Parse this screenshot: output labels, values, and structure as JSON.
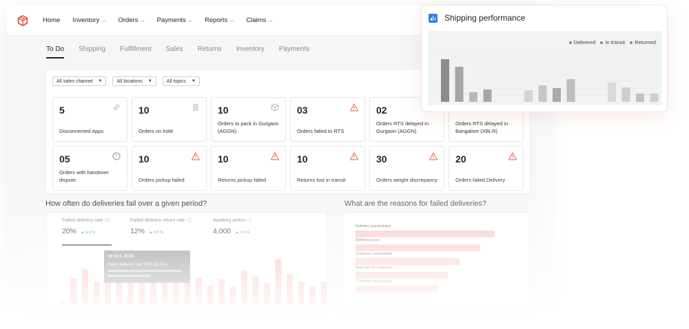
{
  "nav": {
    "items": [
      {
        "label": "Home",
        "has_dropdown": false
      },
      {
        "label": "Inventory",
        "has_dropdown": true
      },
      {
        "label": "Orders",
        "has_dropdown": true
      },
      {
        "label": "Payments",
        "has_dropdown": true
      },
      {
        "label": "Reports",
        "has_dropdown": true
      },
      {
        "label": "Claims",
        "has_dropdown": true
      }
    ]
  },
  "subtabs": [
    "To Do",
    "Shipping",
    "Fulfillment",
    "Sales",
    "Returns",
    "Inventory",
    "Payments"
  ],
  "active_subtab": "To Do",
  "filters": [
    "All sales channel",
    "All locations",
    "All topics"
  ],
  "cards": [
    {
      "value": "5",
      "label": "Disconnected Apps",
      "icon": "link-icon"
    },
    {
      "value": "10",
      "label": "Orders on hold",
      "icon": "pause-icon"
    },
    {
      "value": "10",
      "label": "Orders to pack in Gurgaon (AGGN)",
      "icon": "box-icon"
    },
    {
      "value": "03",
      "label": "Orders failed to RTS",
      "icon": "warning-icon"
    },
    {
      "value": "02",
      "label": "Orders RTS delayed in Gurgaon (AGGN)",
      "icon": ""
    },
    {
      "value": "",
      "label": "Orders RTS delayed in Bangalore (XBLR)",
      "icon": ""
    },
    {
      "value": "05",
      "label": "Orders with handover dispute",
      "icon": "info-icon"
    },
    {
      "value": "10",
      "label": "Orders pickup failed",
      "icon": "warning-icon"
    },
    {
      "value": "10",
      "label": "Returns pickup failed",
      "icon": "warning-icon"
    },
    {
      "value": "10",
      "label": "Returns lost in transit",
      "icon": "warning-icon"
    },
    {
      "value": "30",
      "label": "Orders weight discrepancy",
      "icon": "warning-icon"
    },
    {
      "value": "20",
      "label": "Orders failed Delivery",
      "icon": "warning-icon"
    }
  ],
  "failure_section": {
    "title": "How often do deliveries fail over a given period?",
    "metrics": [
      {
        "label": "Failed delivery rate",
        "value": "20%",
        "delta": "▲ 4.5 %",
        "direction": "up"
      },
      {
        "label": "Failed delivery return rate",
        "value": "12%",
        "delta": "▲ 4.5 %",
        "direction": "up"
      },
      {
        "label": "Awaiting action",
        "value": "4,000",
        "delta": "▲ 4.5 %",
        "direction": "down"
      }
    ],
    "tooltip": {
      "date": "16 Oct, 2024",
      "text": "Failed delivery rate: 600 (18.3%)"
    },
    "bar_color": "#f6b9b6",
    "bars": [
      0.14,
      0.5,
      0.64,
      0.45,
      0.58,
      0.43,
      0.75,
      0.9,
      0.62,
      0.8,
      0.74,
      0.52,
      0.5,
      0.38,
      0.48,
      0.36,
      0.62,
      0.52,
      0.42,
      0.8,
      0.56,
      0.44,
      0.36,
      0.44,
      0.42
    ]
  },
  "reasons_section": {
    "title": "What are the reasons for failed deliveries?",
    "items": [
      {
        "label": "Delivery rescheduled",
        "share": 0.96
      },
      {
        "label": "Address issue",
        "share": 0.86
      },
      {
        "label": "Customer unavailable",
        "share": 0.72
      },
      {
        "label": "Rejected by customer",
        "share": 0.64
      },
      {
        "label": "Customer unavailable",
        "share": 0.57
      }
    ]
  },
  "performance": {
    "title": "Shipping performance",
    "icon": "bar-chart-icon",
    "accent": "#2f7ee8"
  },
  "chart_data": {
    "type": "bar",
    "title": "Shipping performance",
    "series": [
      {
        "name": "Delivered",
        "values": [
          0.62,
          0.51,
          0.14,
          0.18,
          0.17,
          0.24,
          0.2,
          0.33,
          0.28,
          0.21,
          0.12,
          0.12
        ]
      },
      {
        "name": "In transit",
        "values": [
          0.62,
          0.51,
          0.14,
          0.18,
          0.17,
          0.24,
          0.2,
          0.33,
          0.28,
          0.21,
          0.12,
          0.12
        ]
      },
      {
        "name": "Returned",
        "values": [
          0.62,
          0.51,
          0.14,
          0.18,
          0.17,
          0.24,
          0.2,
          0.33,
          0.28,
          0.21,
          0.12,
          0.12
        ]
      }
    ],
    "bar_heights_fraction": [
      0.62,
      0.51,
      0.14,
      0.18,
      0.17,
      0.24,
      0.2,
      0.33,
      0.28,
      0.21,
      0.12,
      0.12
    ],
    "bar_colors": [
      "#8c8c8c",
      "#a6a6a6",
      "#b8b8b8",
      "#a6a6a6",
      "#d4d4d4",
      "#c6c6c6",
      "#aaaaaa",
      "#bdbdbd",
      "#d9d9d9",
      "#cdcdcd",
      "#c2c2c2",
      "#cfcfcf"
    ],
    "groups": [
      [
        0,
        1,
        2,
        3
      ],
      [
        4,
        5,
        6,
        7
      ],
      [
        8,
        9,
        10,
        11
      ]
    ],
    "legend": [
      "Delivered",
      "In transit",
      "Returned"
    ],
    "legend_position": "top-right",
    "xlabel": "",
    "ylabel": "",
    "grid": true
  }
}
